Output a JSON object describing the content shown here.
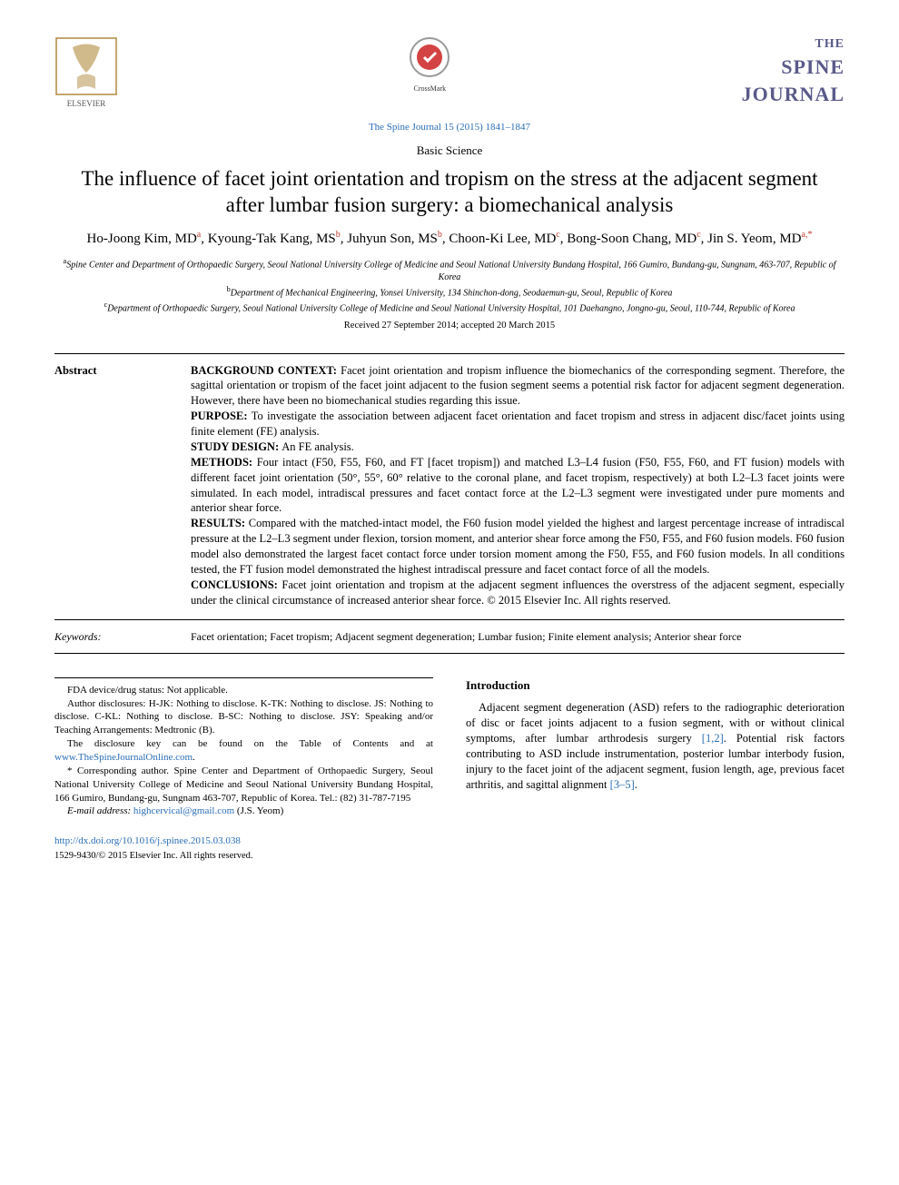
{
  "header": {
    "publisher": "ELSEVIER",
    "crossmark": "CrossMark",
    "journal_logo": {
      "line1": "THE",
      "line2": "SPINE",
      "line3": "JOURNAL"
    },
    "citation": "The Spine Journal 15 (2015) 1841–1847",
    "section_label": "Basic Science"
  },
  "title": "The influence of facet joint orientation and tropism on the stress at the adjacent segment after lumbar fusion surgery: a biomechanical analysis",
  "authors_html": "Ho-Joong Kim, MD<sup>a</sup>, Kyoung-Tak Kang, MS<sup>b</sup>, Juhyun Son, MS<sup>b</sup>, Choon-Ki Lee, MD<sup>c</sup>, Bong-Soon Chang, MD<sup>c</sup>, Jin S. Yeom, MD<sup>a,*</sup>",
  "affiliations": [
    {
      "sup": "a",
      "text": "Spine Center and Department of Orthopaedic Surgery, Seoul National University College of Medicine and Seoul National University Bundang Hospital, 166 Gumiro, Bundang-gu, Sungnam, 463-707, Republic of Korea"
    },
    {
      "sup": "b",
      "text": "Department of Mechanical Engineering, Yonsei University, 134 Shinchon-dong, Seodaemun-gu, Seoul, Republic of Korea"
    },
    {
      "sup": "c",
      "text": "Department of Orthopaedic Surgery, Seoul National University College of Medicine and Seoul National University Hospital, 101 Daehangno, Jongno-gu, Seoul, 110-744, Republic of Korea"
    }
  ],
  "received": "Received 27 September 2014; accepted 20 March 2015",
  "abstract": {
    "label": "Abstract",
    "sections": [
      {
        "head": "BACKGROUND CONTEXT:",
        "text": "Facet joint orientation and tropism influence the biomechanics of the corresponding segment. Therefore, the sagittal orientation or tropism of the facet joint adjacent to the fusion segment seems a potential risk factor for adjacent segment degeneration. However, there have been no biomechanical studies regarding this issue."
      },
      {
        "head": "PURPOSE:",
        "text": "To investigate the association between adjacent facet orientation and facet tropism and stress in adjacent disc/facet joints using finite element (FE) analysis."
      },
      {
        "head": "STUDY DESIGN:",
        "text": "An FE analysis."
      },
      {
        "head": "METHODS:",
        "text": "Four intact (F50, F55, F60, and FT [facet tropism]) and matched L3–L4 fusion (F50, F55, F60, and FT fusion) models with different facet joint orientation (50°, 55°, 60° relative to the coronal plane, and facet tropism, respectively) at both L2–L3 facet joints were simulated. In each model, intradiscal pressures and facet contact force at the L2–L3 segment were investigated under pure moments and anterior shear force."
      },
      {
        "head": "RESULTS:",
        "text": "Compared with the matched-intact model, the F60 fusion model yielded the highest and largest percentage increase of intradiscal pressure at the L2–L3 segment under flexion, torsion moment, and anterior shear force among the F50, F55, and F60 fusion models. F60 fusion model also demonstrated the largest facet contact force under torsion moment among the F50, F55, and F60 fusion models. In all conditions tested, the FT fusion model demonstrated the highest intradiscal pressure and facet contact force of all the models."
      },
      {
        "head": "CONCLUSIONS:",
        "text": "Facet joint orientation and tropism at the adjacent segment influences the overstress of the adjacent segment, especially under the clinical circumstance of increased anterior shear force.   © 2015 Elsevier Inc. All rights reserved."
      }
    ]
  },
  "keywords": {
    "label": "Keywords:",
    "text": "Facet orientation; Facet tropism; Adjacent segment degeneration; Lumbar fusion; Finite element analysis; Anterior shear force"
  },
  "footnotes": {
    "fda": "FDA device/drug status: Not applicable.",
    "disclosures": "Author disclosures: H-JK: Nothing to disclose. K-TK: Nothing to disclose. JS: Nothing to disclose. C-KL: Nothing to disclose. B-SC: Nothing to disclose. JSY: Speaking and/or Teaching Arrangements: Medtronic (B).",
    "disclosure_key_pre": "The disclosure key can be found on the Table of Contents and at ",
    "disclosure_key_link": "www.TheSpineJournalOnline.com",
    "disclosure_key_post": ".",
    "corresponding": "* Corresponding author. Spine Center and Department of Orthopaedic Surgery, Seoul National University College of Medicine and Seoul National University Bundang Hospital, 166 Gumiro, Bundang-gu, Sungnam 463-707, Republic of Korea. Tel.: (82) 31-787-7195",
    "email_label": "E-mail address: ",
    "email": "highcervical@gmail.com",
    "email_suffix": " (J.S. Yeom)"
  },
  "introduction": {
    "head": "Introduction",
    "body_pre": "Adjacent segment degeneration (ASD) refers to the radiographic deterioration of disc or facet joints adjacent to a fusion segment, with or without clinical symptoms, after lumbar arthrodesis surgery ",
    "ref1": "[1,2]",
    "body_mid": ". Potential risk factors contributing to ASD include instrumentation, posterior lumbar interbody fusion, injury to the facet joint of the adjacent segment, fusion length, age, previous facet arthritis, and sagittal alignment ",
    "ref2": "[3–5]",
    "body_post": "."
  },
  "doi": "http://dx.doi.org/10.1016/j.spinee.2015.03.038",
  "copyright": "1529-9430/© 2015 Elsevier Inc. All rights reserved.",
  "colors": {
    "link": "#2a6db5",
    "logo_purple": "#5a5a8a",
    "sup_red": "#c0392b",
    "text": "#000000",
    "bg": "#ffffff"
  }
}
